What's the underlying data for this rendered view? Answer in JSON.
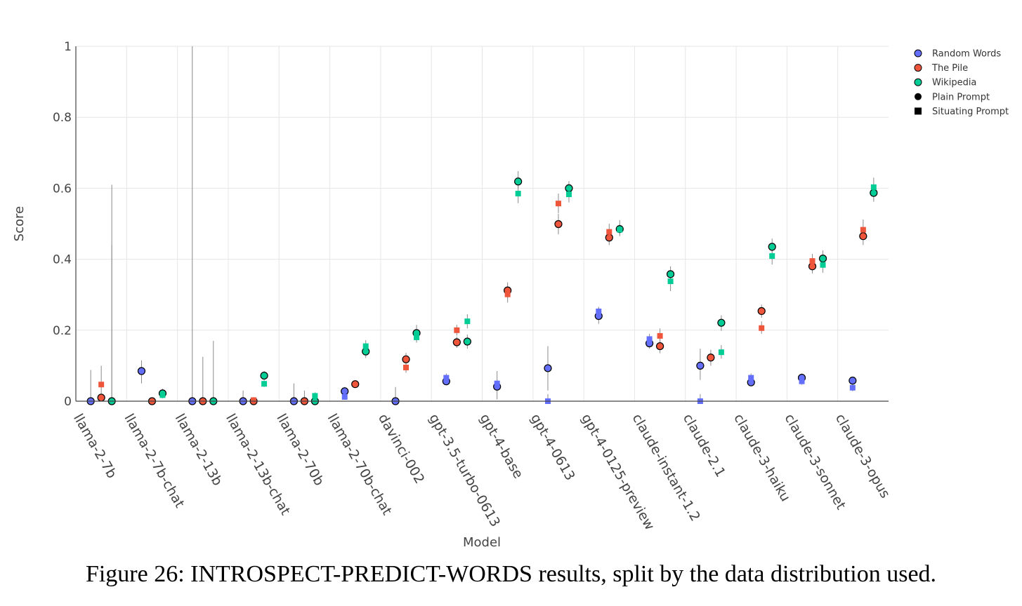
{
  "chart_data": {
    "type": "scatter",
    "xlabel": "Model",
    "ylabel": "Score",
    "ylim": [
      0,
      1
    ],
    "yticks": [
      0,
      0.2,
      0.4,
      0.6,
      0.8,
      1
    ],
    "ytick_labels": [
      "0",
      "0.2",
      "0.4",
      "0.6",
      "0.8",
      "1"
    ],
    "grid": true,
    "legend_position": "top-right, outside plot",
    "categories": [
      "llama-2-7b",
      "llama-2-7b-chat",
      "llama-2-13b",
      "llama-2-13b-chat",
      "llama-2-70b",
      "llama-2-70b-chat",
      "davinci-002",
      "gpt-3.5-turbo-0613",
      "gpt-4-base",
      "gpt-4-0613",
      "gpt-4-0125-preview",
      "claude-instant-1.2",
      "claude-2.1",
      "claude-3-haiku",
      "claude-3-sonnet",
      "claude-3-opus"
    ],
    "legend": [
      {
        "label": "Random Words",
        "kind": "color",
        "color": "#636efa"
      },
      {
        "label": "The Pile",
        "kind": "color",
        "color": "#ef553b"
      },
      {
        "label": "Wikipedia",
        "kind": "color",
        "color": "#00cc96"
      },
      {
        "label": "Plain Prompt",
        "kind": "marker",
        "marker": "circle"
      },
      {
        "label": "Situating Prompt",
        "kind": "marker",
        "marker": "square"
      }
    ],
    "series": [
      {
        "name": "Random Words",
        "prompt": "Plain Prompt",
        "color": "#636efa",
        "marker": "circle",
        "values": [
          0.0,
          0.085,
          0.0,
          0.0,
          0.0,
          0.028,
          0.0,
          0.056,
          0.041,
          0.093,
          0.24,
          0.163,
          0.1,
          0.053,
          0.066,
          0.058
        ],
        "err": [
          [
            0,
            0.088
          ],
          [
            0.05,
            0.115
          ],
          [
            0,
            1.0
          ],
          [
            0,
            0.03
          ],
          [
            0,
            0.05
          ],
          [
            0.018,
            0.04
          ],
          [
            0,
            0.04
          ],
          [
            0.045,
            0.07
          ],
          [
            0.005,
            0.085
          ],
          [
            0.03,
            0.155
          ],
          [
            0.218,
            0.263
          ],
          [
            0.148,
            0.18
          ],
          [
            0.06,
            0.148
          ],
          [
            0.043,
            0.065
          ],
          [
            0.056,
            0.078
          ],
          [
            0.048,
            0.068
          ]
        ]
      },
      {
        "name": "Random Words",
        "prompt": "Situating Prompt",
        "color": "#636efa",
        "marker": "square",
        "values": [
          null,
          null,
          null,
          null,
          null,
          0.012,
          null,
          0.066,
          0.05,
          0.0,
          0.253,
          0.175,
          0.0,
          0.066,
          0.056,
          0.038
        ],
        "err": [
          null,
          null,
          null,
          null,
          null,
          [
            0.005,
            0.02
          ],
          null,
          [
            0.055,
            0.078
          ],
          [
            0.04,
            0.06
          ],
          [
            0,
            0.02
          ],
          [
            0.24,
            0.266
          ],
          [
            0.162,
            0.19
          ],
          [
            0,
            0.02
          ],
          [
            0.055,
            0.078
          ],
          [
            0.046,
            0.066
          ],
          [
            0.028,
            0.048
          ]
        ]
      },
      {
        "name": "The Pile",
        "prompt": "Plain Prompt",
        "color": "#ef553b",
        "marker": "circle",
        "values": [
          0.01,
          0.0,
          0.0,
          0.0,
          0.0,
          0.048,
          0.118,
          0.166,
          0.312,
          0.499,
          0.461,
          0.155,
          0.123,
          0.254,
          0.38,
          0.465
        ],
        "err": [
          [
            0,
            0.02
          ],
          [
            0,
            0.0
          ],
          [
            0,
            0.125
          ],
          [
            0,
            0.0
          ],
          [
            0,
            0.03
          ],
          [
            0.038,
            0.058
          ],
          [
            0.1,
            0.136
          ],
          [
            0.15,
            0.182
          ],
          [
            0.29,
            0.335
          ],
          [
            0.47,
            0.528
          ],
          [
            0.44,
            0.482
          ],
          [
            0.135,
            0.175
          ],
          [
            0.1,
            0.145
          ],
          [
            0.235,
            0.272
          ],
          [
            0.36,
            0.4
          ],
          [
            0.44,
            0.49
          ]
        ]
      },
      {
        "name": "The Pile",
        "prompt": "Situating Prompt",
        "color": "#ef553b",
        "marker": "square",
        "values": [
          0.047,
          null,
          null,
          0.003,
          null,
          null,
          0.095,
          0.2,
          0.301,
          0.557,
          0.477,
          0.184,
          null,
          0.206,
          0.395,
          0.483
        ],
        "err": [
          [
            0.02,
            0.1
          ],
          null,
          null,
          [
            0,
            0.008
          ],
          null,
          null,
          [
            0.08,
            0.11
          ],
          [
            0.185,
            0.215
          ],
          [
            0.278,
            0.322
          ],
          [
            0.53,
            0.585
          ],
          [
            0.455,
            0.5
          ],
          [
            0.165,
            0.205
          ],
          null,
          [
            0.19,
            0.225
          ],
          [
            0.375,
            0.415
          ],
          [
            0.455,
            0.512
          ]
        ]
      },
      {
        "name": "Wikipedia",
        "prompt": "Plain Prompt",
        "color": "#00cc96",
        "marker": "circle",
        "values": [
          0.0,
          0.022,
          0.0,
          0.072,
          0.0,
          0.14,
          0.192,
          0.168,
          0.619,
          0.6,
          0.485,
          0.358,
          0.221,
          0.435,
          0.402,
          0.587
        ],
        "err": [
          [
            0,
            0.61
          ],
          [
            0.012,
            0.035
          ],
          [
            0,
            0.17
          ],
          [
            0.06,
            0.085
          ],
          [
            0,
            0.01
          ],
          [
            0.122,
            0.16
          ],
          [
            0.17,
            0.215
          ],
          [
            0.148,
            0.188
          ],
          [
            0.6,
            0.648
          ],
          [
            0.58,
            0.62
          ],
          [
            0.47,
            0.51
          ],
          [
            0.335,
            0.38
          ],
          [
            0.198,
            0.242
          ],
          [
            0.412,
            0.458
          ],
          [
            0.38,
            0.425
          ],
          [
            0.562,
            0.61
          ]
        ]
      },
      {
        "name": "Wikipedia",
        "prompt": "Situating Prompt",
        "color": "#00cc96",
        "marker": "square",
        "values": [
          null,
          0.017,
          null,
          0.049,
          0.015,
          0.155,
          0.18,
          0.225,
          0.585,
          0.583,
          0.483,
          0.338,
          0.138,
          0.409,
          0.384,
          0.603
        ],
        "err": [
          [
            0,
            0.44
          ],
          [
            0.008,
            0.028
          ],
          null,
          [
            0.04,
            0.06
          ],
          [
            0.005,
            0.025
          ],
          [
            0.14,
            0.172
          ],
          [
            0.165,
            0.197
          ],
          [
            0.205,
            0.245
          ],
          [
            0.558,
            0.612
          ],
          [
            0.56,
            0.608
          ],
          [
            0.465,
            0.5
          ],
          [
            0.31,
            0.365
          ],
          [
            0.12,
            0.158
          ],
          [
            0.385,
            0.432
          ],
          [
            0.362,
            0.406
          ],
          [
            0.578,
            0.63
          ]
        ]
      }
    ]
  },
  "caption": {
    "prefix": "Figure 26: ",
    "task_name": "INTROSPECT-PREDICT-WORDS",
    "suffix": " results, split by the data distribution used."
  }
}
